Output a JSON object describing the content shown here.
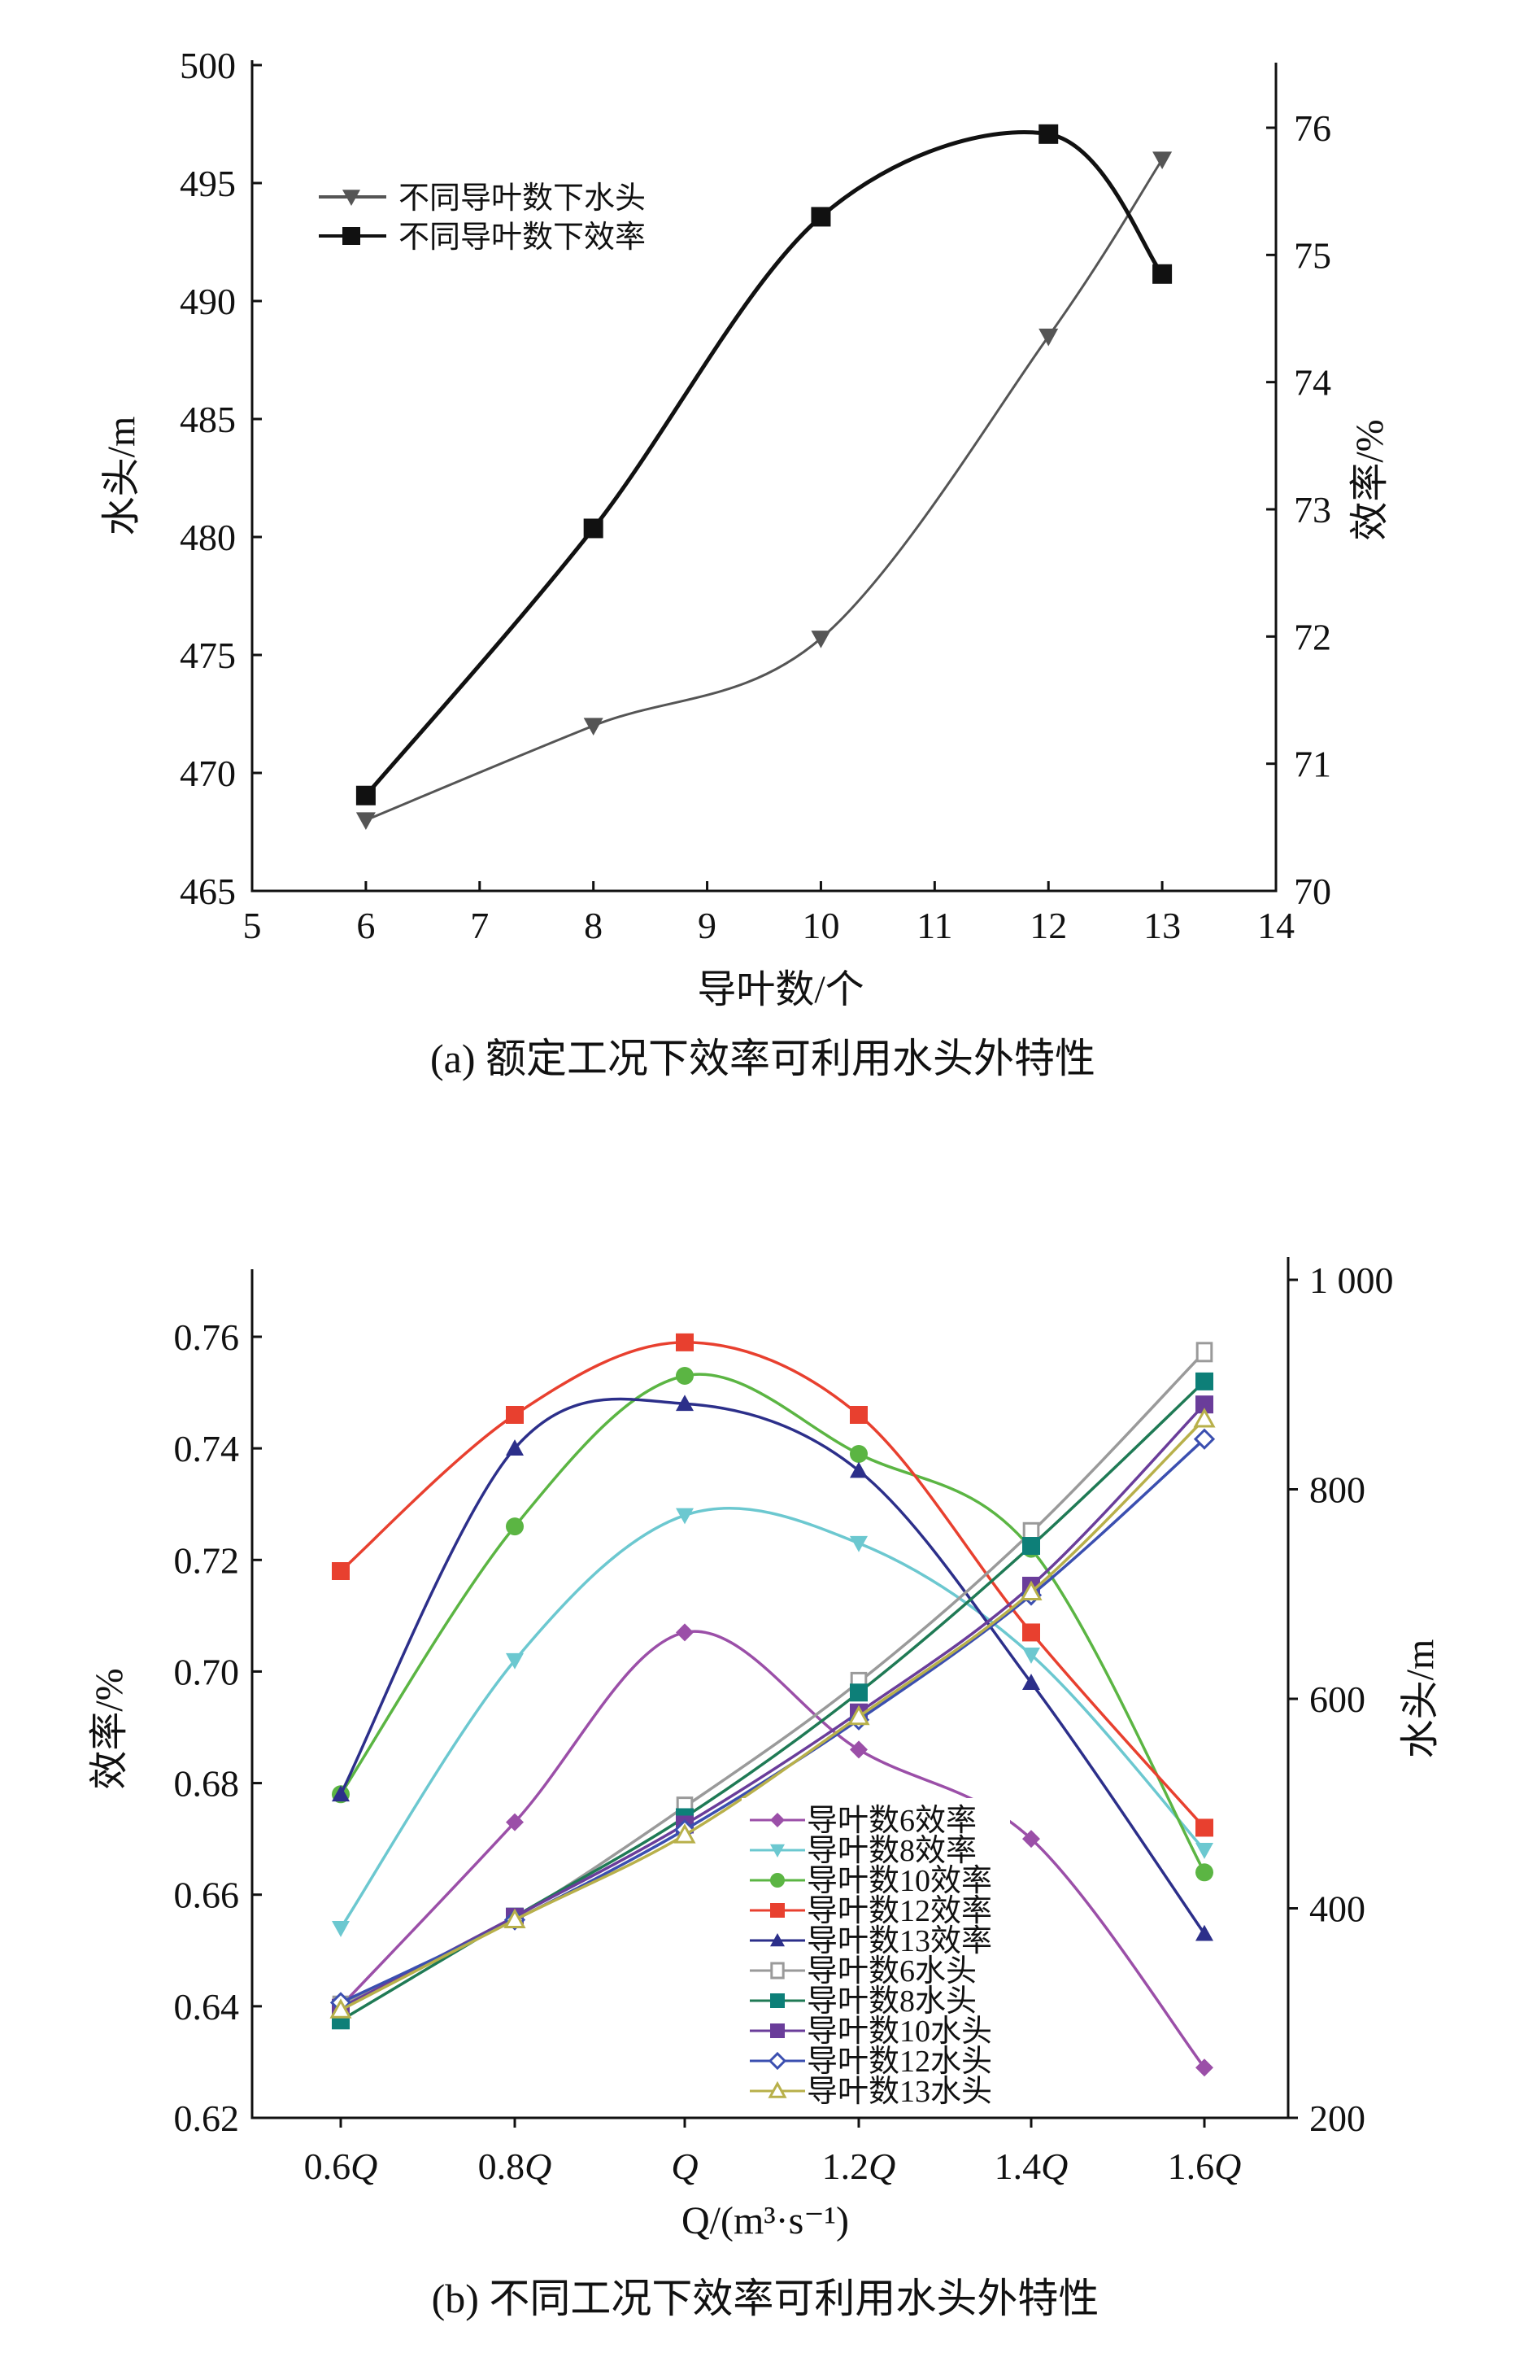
{
  "chart_data": [
    {
      "type": "line",
      "caption": "(a) 额定工况下效率可利用水头外特性",
      "xlabel": "导叶数/个",
      "ylabel": "水头/m",
      "y2label": "效率/%",
      "xlim": [
        5,
        14
      ],
      "ylim": [
        465,
        500
      ],
      "y2lim": [
        70,
        76
      ],
      "xticks": [
        "5",
        "6",
        "7",
        "8",
        "9",
        "10",
        "11",
        "12",
        "13",
        "14"
      ],
      "yticks": [
        "465",
        "470",
        "475",
        "480",
        "485",
        "490",
        "495",
        "500"
      ],
      "y2ticks": [
        "70",
        "71",
        "72",
        "73",
        "74",
        "75",
        "76"
      ],
      "legend_position": "top-left",
      "series": [
        {
          "name": "不同导叶数下水头",
          "axis": "left",
          "color": "#555555",
          "marker": "triangle-down",
          "x": [
            6,
            8,
            10,
            12,
            13
          ],
          "values": [
            468,
            472,
            475.7,
            488.5,
            496
          ]
        },
        {
          "name": "不同导叶数下效率",
          "axis": "right",
          "color": "#111111",
          "marker": "square",
          "x": [
            6,
            8,
            10,
            12,
            13
          ],
          "values": [
            70.75,
            72.85,
            75.3,
            75.95,
            74.85
          ]
        }
      ]
    },
    {
      "type": "line",
      "caption": "(b) 不同工况下效率可利用水头外特性",
      "xlabel": "Q/(m³·s⁻¹)",
      "ylabel": "效率/%",
      "y2label": "水头/m",
      "categories": [
        "0.6Q",
        "0.8Q",
        "Q",
        "1.2Q",
        "1.4Q",
        "1.6Q"
      ],
      "ylim": [
        0.62,
        0.76
      ],
      "y2lim": [
        200,
        1000
      ],
      "yticks": [
        "0.62",
        "0.64",
        "0.66",
        "0.68",
        "0.70",
        "0.72",
        "0.74",
        "0.76"
      ],
      "y2ticks": [
        "200",
        "400",
        "600",
        "800",
        "1 000"
      ],
      "legend_position": "bottom-center",
      "series": [
        {
          "name": "导叶数6效率",
          "axis": "left",
          "color": "#9b4fa8",
          "marker": "diamond",
          "values": [
            0.64,
            0.673,
            0.707,
            0.686,
            0.67,
            0.629
          ]
        },
        {
          "name": "导叶数8效率",
          "axis": "left",
          "color": "#6cc8d0",
          "marker": "triangle-down",
          "values": [
            0.654,
            0.702,
            0.728,
            0.723,
            0.703,
            0.668
          ]
        },
        {
          "name": "导叶数10效率",
          "axis": "left",
          "color": "#5bb543",
          "marker": "circle",
          "values": [
            0.678,
            0.726,
            0.753,
            0.739,
            0.722,
            0.664
          ]
        },
        {
          "name": "导叶数12效率",
          "axis": "left",
          "color": "#e8402f",
          "marker": "square",
          "values": [
            0.718,
            0.746,
            0.759,
            0.746,
            0.707,
            0.672
          ]
        },
        {
          "name": "导叶数13效率",
          "axis": "left",
          "color": "#2c2f8a",
          "marker": "triangle",
          "values": [
            0.678,
            0.74,
            0.748,
            0.736,
            0.698,
            0.653
          ]
        },
        {
          "name": "导叶数6水头",
          "axis": "right",
          "color": "#9a9a9a",
          "marker": "open-square",
          "values": [
            307,
            391,
            497,
            616,
            759,
            931
          ]
        },
        {
          "name": "导叶数8水头",
          "axis": "right",
          "color": "#1f7a55",
          "marker": "teal-square",
          "values": [
            293,
            392,
            487,
            606,
            746,
            903
          ]
        },
        {
          "name": "导叶数10水头",
          "axis": "right",
          "color": "#6a3d9a",
          "marker": "square",
          "values": [
            305,
            392,
            480,
            587,
            708,
            881
          ]
        },
        {
          "name": "导叶数12水头",
          "axis": "right",
          "color": "#3b4fb0",
          "marker": "open-diamond",
          "values": [
            310,
            389,
            475,
            580,
            699,
            848
          ]
        },
        {
          "name": "导叶数13水头",
          "axis": "right",
          "color": "#b8b04a",
          "marker": "open-triangle",
          "values": [
            303,
            389,
            470,
            583,
            702,
            867
          ]
        }
      ]
    }
  ]
}
